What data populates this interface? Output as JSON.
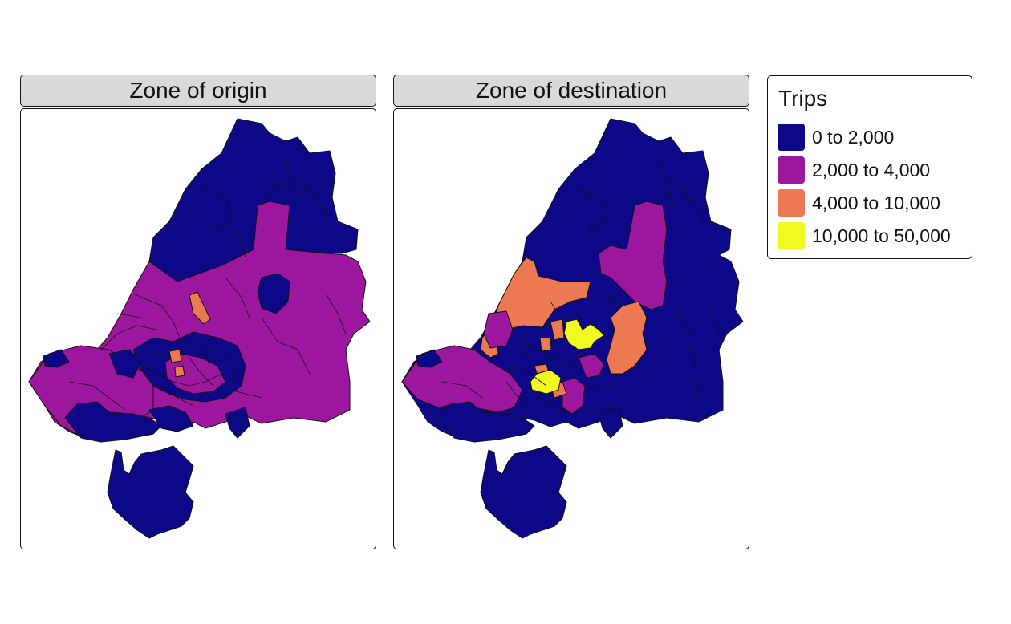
{
  "facets": [
    {
      "title": "Zone of origin"
    },
    {
      "title": "Zone of destination"
    }
  ],
  "legend": {
    "title": "Trips",
    "items": [
      {
        "label": "0 to 2,000",
        "color": "#0d0887"
      },
      {
        "label": "2,000 to 4,000",
        "color": "#9c179e"
      },
      {
        "label": "4,000 to 10,000",
        "color": "#ed7953"
      },
      {
        "label": "10,000 to 50,000",
        "color": "#f0f921"
      }
    ]
  },
  "colors": {
    "border": "#111111",
    "strip_fill": "#d9d9d9"
  }
}
